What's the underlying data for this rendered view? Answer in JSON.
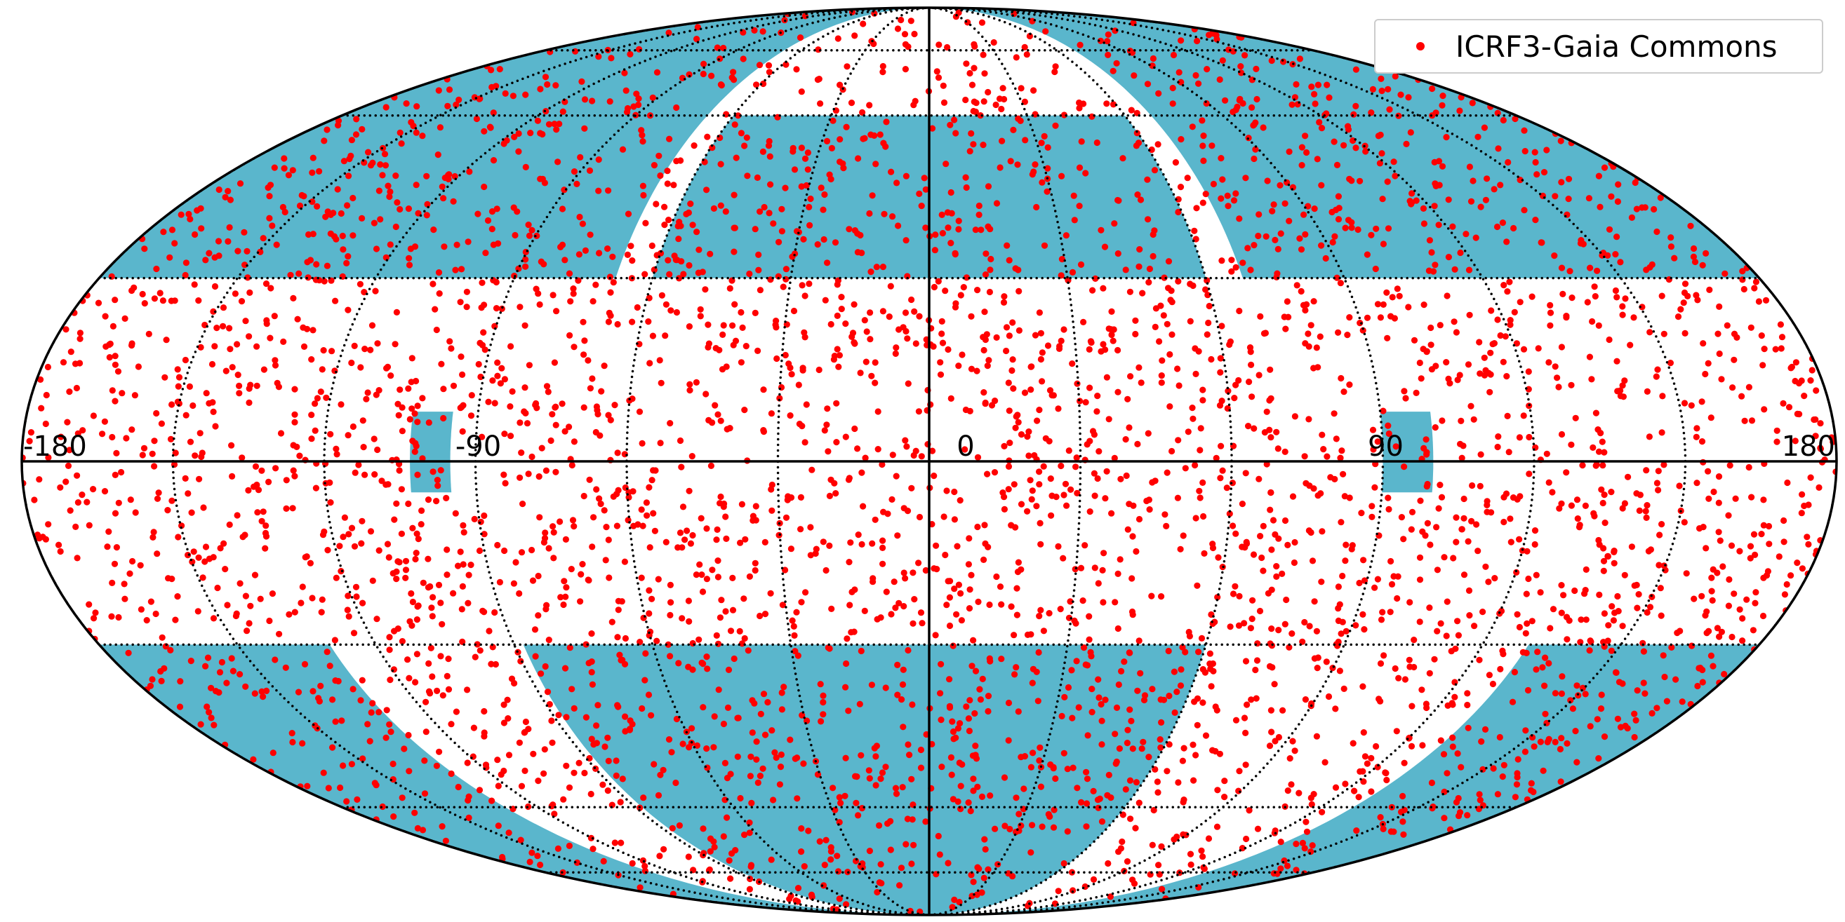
{
  "chart_data": {
    "type": "scatter",
    "projection": "mollweide",
    "title": "",
    "xlabel": "",
    "ylabel": "",
    "xlim": [
      -180,
      180
    ],
    "ylim": [
      -90,
      90
    ],
    "meridians": [
      -180,
      -150,
      -120,
      -90,
      -60,
      -30,
      0,
      30,
      60,
      90,
      120,
      150,
      180
    ],
    "parallels": [
      -75,
      -60,
      -30,
      0,
      30,
      60,
      75
    ],
    "grid": "dotted",
    "x_tick_labels": [
      {
        "value": -180,
        "label": "-180"
      },
      {
        "value": -90,
        "label": "-90"
      },
      {
        "value": 0,
        "label": "0"
      },
      {
        "value": 90,
        "label": "90"
      },
      {
        "value": 180,
        "label": "180"
      }
    ],
    "legend": {
      "position": "top-right",
      "entries": [
        "ICRF3-Gaia Commons"
      ]
    },
    "series": [
      {
        "name": "ICRF3-Gaia Commons",
        "color": "#ff0000",
        "marker": "dot",
        "approx_count": 4000,
        "distribution": "approximately uniform over the full sky"
      }
    ],
    "coverage_regions": {
      "color": "#5ab6cc",
      "regions": [
        {
          "lon": [
            -180,
            -68
          ],
          "lat": [
            30,
            90
          ]
        },
        {
          "lon": [
            68,
            180
          ],
          "lat": [
            30,
            90
          ]
        },
        {
          "lon": [
            -180,
            -130
          ],
          "lat": [
            -90,
            -30
          ]
        },
        {
          "lon": [
            130,
            180
          ],
          "lat": [
            -90,
            -30
          ]
        },
        {
          "lon": [
            -88,
            60
          ],
          "lat": [
            -90,
            -30
          ]
        },
        {
          "lon": [
            -60,
            60
          ],
          "lat": [
            30,
            60
          ]
        },
        {
          "lon": [
            -103,
            -95
          ],
          "lat": [
            -5,
            8
          ]
        },
        {
          "lon": [
            90,
            100
          ],
          "lat": [
            -5,
            8
          ]
        }
      ]
    }
  }
}
